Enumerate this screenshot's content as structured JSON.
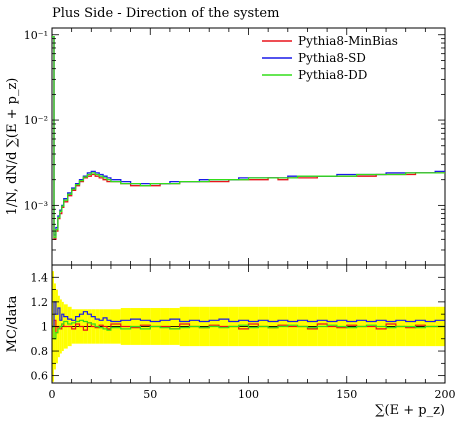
{
  "title": "Plus Side - Direction of the system",
  "chart_data": [
    {
      "type": "line",
      "panel": "main",
      "title": "Plus Side - Direction of the system",
      "xlabel": "",
      "ylabel": "1/N, dN/d ∑(E + p_z)",
      "xlim": [
        0,
        200
      ],
      "ylim": [
        0.0002,
        0.12
      ],
      "yscale": "log",
      "y_ticks": [
        {
          "value": 0.001,
          "label": "10⁻³"
        },
        {
          "value": 0.01,
          "label": "10⁻²"
        },
        {
          "value": 0.1,
          "label": "10⁻¹"
        }
      ],
      "legend_position": "top-right",
      "x": [
        0,
        1,
        2,
        3,
        4,
        5,
        6,
        8,
        10,
        12,
        14,
        16,
        18,
        20,
        22,
        24,
        26,
        28,
        30,
        35,
        40,
        45,
        50,
        55,
        60,
        65,
        70,
        75,
        80,
        85,
        90,
        95,
        100,
        105,
        110,
        115,
        120,
        125,
        130,
        135,
        140,
        145,
        150,
        155,
        160,
        165,
        170,
        175,
        180,
        185,
        190,
        195,
        200
      ],
      "series": [
        {
          "name": "Pythia8-MinBias",
          "color": "#e8141c",
          "values": [
            0.095,
            0.0004,
            0.0005,
            0.0007,
            0.0008,
            0.00095,
            0.0011,
            0.0013,
            0.0015,
            0.0017,
            0.0019,
            0.0021,
            0.0022,
            0.0023,
            0.0022,
            0.0021,
            0.002,
            0.0019,
            0.0019,
            0.0018,
            0.0017,
            0.0017,
            0.0017,
            0.0018,
            0.0018,
            0.0019,
            0.0019,
            0.0019,
            0.0019,
            0.0019,
            0.002,
            0.002,
            0.002,
            0.002,
            0.0021,
            0.002,
            0.0021,
            0.0021,
            0.0021,
            0.0022,
            0.0022,
            0.0022,
            0.0022,
            0.0022,
            0.0022,
            0.0023,
            0.0023,
            0.0023,
            0.0023,
            0.0024,
            0.0024,
            0.0024,
            0.0024
          ]
        },
        {
          "name": "Pythia8-SD",
          "color": "#1a1ae8",
          "values": [
            0.095,
            0.00045,
            0.00055,
            0.00075,
            0.00088,
            0.001,
            0.0012,
            0.0014,
            0.0016,
            0.0018,
            0.002,
            0.0022,
            0.0024,
            0.0025,
            0.0024,
            0.0023,
            0.0022,
            0.0021,
            0.002,
            0.0019,
            0.0018,
            0.0018,
            0.0018,
            0.0018,
            0.0019,
            0.0019,
            0.0019,
            0.002,
            0.002,
            0.002,
            0.002,
            0.0021,
            0.0021,
            0.0021,
            0.0021,
            0.0021,
            0.0022,
            0.0022,
            0.0022,
            0.0022,
            0.0022,
            0.0023,
            0.0023,
            0.0023,
            0.0023,
            0.0023,
            0.0024,
            0.0024,
            0.0024,
            0.0024,
            0.0024,
            0.0025,
            0.0025
          ]
        },
        {
          "name": "Pythia8-DD",
          "color": "#33dd1a",
          "values": [
            0.095,
            0.00042,
            0.00052,
            0.00072,
            0.00085,
            0.00098,
            0.00115,
            0.00135,
            0.00155,
            0.00175,
            0.00195,
            0.00215,
            0.0023,
            0.0024,
            0.0023,
            0.0022,
            0.0021,
            0.002,
            0.0019,
            0.0018,
            0.0018,
            0.0017,
            0.0018,
            0.0018,
            0.0018,
            0.0019,
            0.0019,
            0.0019,
            0.002,
            0.002,
            0.002,
            0.002,
            0.0021,
            0.0021,
            0.0021,
            0.0021,
            0.0021,
            0.0022,
            0.0022,
            0.0022,
            0.0022,
            0.0022,
            0.0022,
            0.0023,
            0.0023,
            0.0023,
            0.0023,
            0.0023,
            0.0024,
            0.0024,
            0.0024,
            0.0024,
            0.0024
          ]
        }
      ]
    },
    {
      "type": "line",
      "panel": "ratio",
      "xlabel": "∑(E + p_z)",
      "ylabel": "MC/data",
      "xlim": [
        0,
        200
      ],
      "ylim": [
        0.54,
        1.5
      ],
      "x_ticks": [
        0,
        50,
        100,
        150,
        200
      ],
      "y_ticks": [
        0.6,
        0.8,
        1,
        1.2,
        1.4
      ],
      "band_color": "#ffff00",
      "x": [
        0,
        1,
        2,
        3,
        4,
        5,
        6,
        8,
        10,
        12,
        14,
        16,
        18,
        20,
        22,
        24,
        26,
        28,
        30,
        35,
        40,
        45,
        50,
        55,
        60,
        65,
        70,
        75,
        80,
        85,
        90,
        95,
        100,
        105,
        110,
        115,
        120,
        125,
        130,
        135,
        140,
        145,
        150,
        155,
        160,
        165,
        170,
        175,
        180,
        185,
        190,
        195,
        200
      ],
      "band": [
        0.45,
        0.35,
        0.3,
        0.25,
        0.22,
        0.2,
        0.18,
        0.16,
        0.14,
        0.14,
        0.14,
        0.14,
        0.14,
        0.14,
        0.14,
        0.14,
        0.14,
        0.14,
        0.14,
        0.15,
        0.15,
        0.15,
        0.15,
        0.15,
        0.15,
        0.16,
        0.16,
        0.16,
        0.16,
        0.16,
        0.16,
        0.16,
        0.16,
        0.16,
        0.16,
        0.16,
        0.16,
        0.16,
        0.16,
        0.16,
        0.16,
        0.16,
        0.16,
        0.16,
        0.16,
        0.16,
        0.16,
        0.16,
        0.16,
        0.16,
        0.16,
        0.16,
        0.16
      ],
      "series": [
        {
          "name": "Pythia8-MinBias",
          "color": "#e8141c",
          "values": [
            1.0,
            1.05,
            0.95,
            1.0,
            0.98,
            1.02,
            1.0,
            1.0,
            0.98,
            1.02,
            1.0,
            0.97,
            1.03,
            1.0,
            0.99,
            1.01,
            1.0,
            0.98,
            1.02,
            1.0,
            0.99,
            1.01,
            1.0,
            1.0,
            0.98,
            1.02,
            1.0,
            0.99,
            1.01,
            1.0,
            1.0,
            0.98,
            1.02,
            1.0,
            0.99,
            1.01,
            1.0,
            1.0,
            0.98,
            1.02,
            1.0,
            0.99,
            1.01,
            1.0,
            1.0,
            0.98,
            1.02,
            1.0,
            0.99,
            1.01,
            1.0,
            1.0,
            1.0
          ]
        },
        {
          "name": "Pythia8-SD",
          "color": "#1a1ae8",
          "values": [
            1.0,
            1.2,
            1.1,
            1.15,
            1.05,
            1.1,
            1.08,
            1.06,
            1.05,
            1.08,
            1.1,
            1.12,
            1.1,
            1.08,
            1.06,
            1.05,
            1.07,
            1.05,
            1.04,
            1.05,
            1.06,
            1.05,
            1.04,
            1.05,
            1.06,
            1.04,
            1.05,
            1.04,
            1.05,
            1.06,
            1.04,
            1.05,
            1.04,
            1.05,
            1.04,
            1.05,
            1.04,
            1.05,
            1.04,
            1.05,
            1.04,
            1.05,
            1.04,
            1.05,
            1.04,
            1.05,
            1.04,
            1.05,
            1.04,
            1.05,
            1.04,
            1.05,
            1.04
          ]
        },
        {
          "name": "Pythia8-DD",
          "color": "#33dd1a",
          "values": [
            1.0,
            0.9,
            0.95,
            0.98,
            1.0,
            1.02,
            1.04,
            1.02,
            1.03,
            1.04,
            1.05,
            1.04,
            1.03,
            1.02,
            1.0,
            0.99,
            0.98,
            0.97,
            0.99,
            0.98,
            1.0,
            0.98,
            1.0,
            0.99,
            0.98,
            0.99,
            1.0,
            0.99,
            1.0,
            0.99,
            1.0,
            1.01,
            0.99,
            1.0,
            0.99,
            1.0,
            1.01,
            1.0,
            0.99,
            1.0,
            1.01,
            1.0,
            0.99,
            1.0,
            1.01,
            1.0,
            0.99,
            1.0,
            1.0,
            0.99,
            1.0,
            1.0,
            1.0
          ]
        }
      ]
    }
  ]
}
